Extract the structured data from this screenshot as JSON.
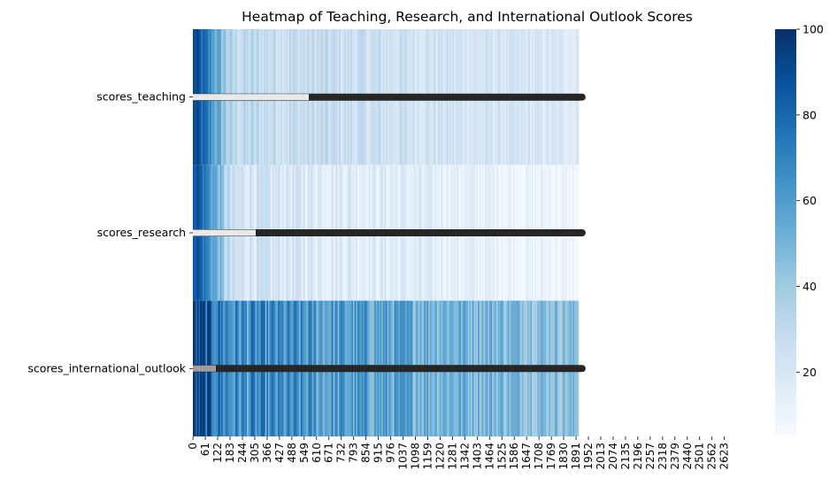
{
  "chart_data": {
    "type": "heatmap",
    "title": "Heatmap of Teaching, Research, and International Outlook Scores",
    "rows": [
      "scores_teaching",
      "scores_research",
      "scores_international_outlook"
    ],
    "x_ticks": [
      "0",
      "61",
      "122",
      "183",
      "244",
      "305",
      "366",
      "427",
      "488",
      "549",
      "610",
      "671",
      "732",
      "793",
      "854",
      "915",
      "976",
      "1037",
      "1098",
      "1159",
      "1220",
      "1281",
      "1342",
      "1403",
      "1464",
      "1525",
      "1586",
      "1647",
      "1708",
      "1769",
      "1830",
      "1891",
      "1952",
      "2013",
      "2074",
      "2135",
      "2196",
      "2257",
      "2318",
      "2379",
      "2440",
      "2501",
      "2562",
      "2623"
    ],
    "n_columns": 2673,
    "n_filled_columns": 1904,
    "colormap": "Blues",
    "colorbar": {
      "min": 5,
      "max": 100,
      "ticks": [
        20,
        40,
        60,
        80,
        100
      ]
    },
    "row_value_profile": {
      "scores_teaching": {
        "start": 92,
        "mid": 30,
        "end": 18
      },
      "scores_research": {
        "start": 95,
        "mid": 22,
        "end": 9
      },
      "scores_international_outlook": {
        "start": 90,
        "mid": 65,
        "end": 45
      }
    },
    "grid": false
  },
  "colors": {
    "cmap_low": "#f7fbff",
    "cmap_high": "#08306b",
    "annotation_text": "#262626"
  }
}
